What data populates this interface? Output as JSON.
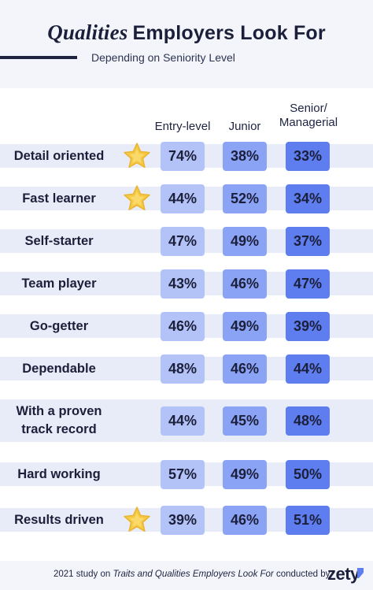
{
  "header": {
    "title_italic": "Qualities",
    "title_rest": "Employers Look For",
    "subtitle": "Depending on Seniority Level"
  },
  "footer": {
    "text_pre": "2021 study on ",
    "text_italic": "Traits and Qualities Employers Look For",
    "text_post": " conducted by",
    "logo": "zety"
  },
  "colors": {
    "entry": "#b4c3f7",
    "junior": "#8aa3f5",
    "senior": "#5e7ef0",
    "stripe": "#e8ecf8",
    "star": "#f6c945",
    "text": "#1b1f3a"
  },
  "chart_data": {
    "type": "table",
    "columns": [
      "Entry-level",
      "Junior",
      "Senior/\nManagerial"
    ],
    "rows": [
      {
        "label": "Detail oriented",
        "values": [
          "74%",
          "38%",
          "33%"
        ],
        "star": true
      },
      {
        "label": "Fast learner",
        "values": [
          "44%",
          "52%",
          "34%"
        ],
        "star": true
      },
      {
        "label": "Self-starter",
        "values": [
          "47%",
          "49%",
          "37%"
        ],
        "star": false
      },
      {
        "label": "Team player",
        "values": [
          "43%",
          "46%",
          "47%"
        ],
        "star": false
      },
      {
        "label": "Go-getter",
        "values": [
          "46%",
          "49%",
          "39%"
        ],
        "star": false
      },
      {
        "label": "Dependable",
        "values": [
          "48%",
          "46%",
          "44%"
        ],
        "star": false
      },
      {
        "label": "With a proven\ntrack record",
        "values": [
          "44%",
          "45%",
          "48%"
        ],
        "star": false
      },
      {
        "label": "Hard working",
        "values": [
          "57%",
          "49%",
          "50%"
        ],
        "star": false
      },
      {
        "label": "Results driven",
        "values": [
          "39%",
          "46%",
          "51%"
        ],
        "star": true
      }
    ]
  }
}
